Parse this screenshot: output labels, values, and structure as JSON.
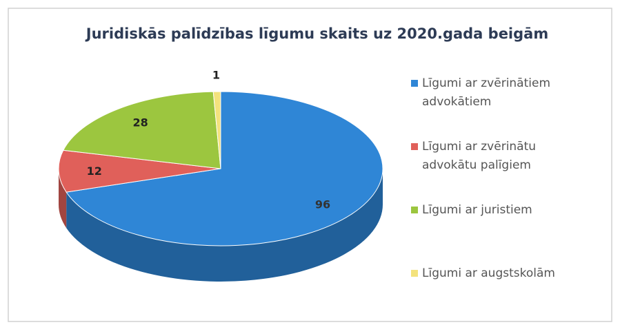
{
  "chart_data": {
    "type": "pie3d",
    "title": "Juridiskās palīdzības līgumu skaits uz 2020.gada beigām",
    "categories": [
      "Līgumi ar zvērinātiem advokātiem",
      "Līgumi ar zvērinātu advokātu palīgiem",
      "Līgumi ar juristiem",
      "Līgumi ar augstskolām"
    ],
    "values": [
      96,
      12,
      28,
      1
    ],
    "colors": [
      "#2f86d6",
      "#e0605a",
      "#9cc63f",
      "#f3e27c"
    ],
    "legend": "right"
  }
}
